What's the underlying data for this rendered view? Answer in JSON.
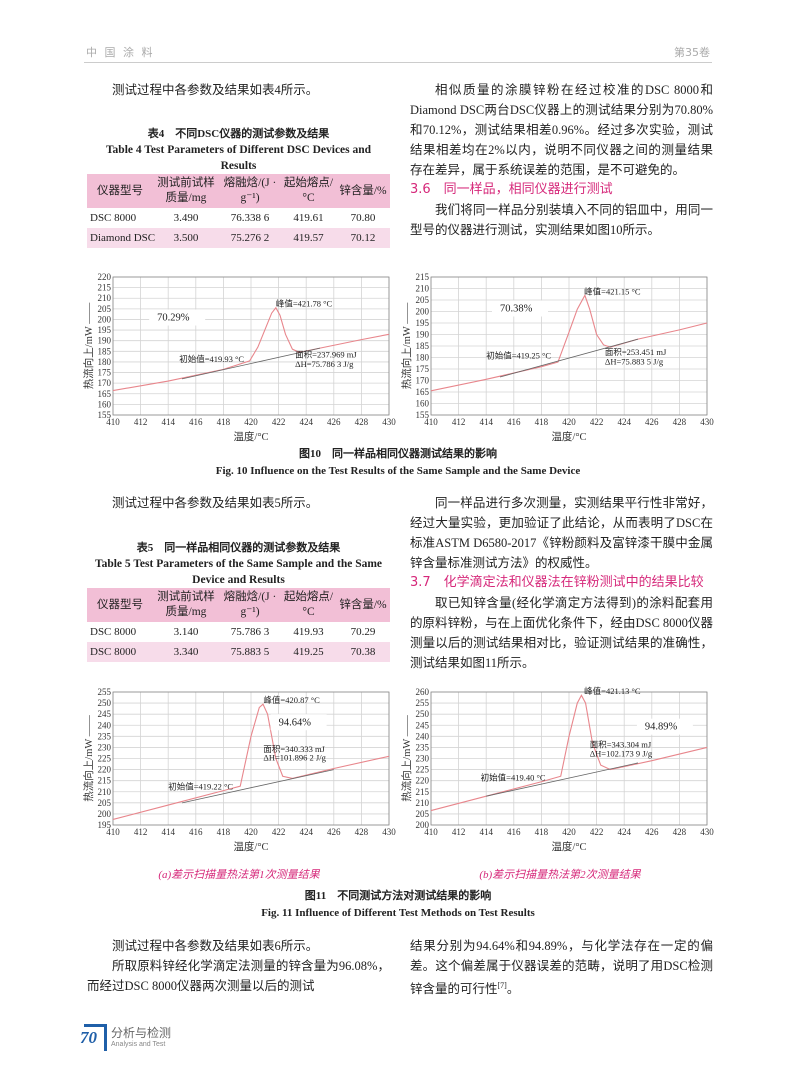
{
  "header": {
    "journal": "中 国 涂 料",
    "volume": "第35卷"
  },
  "left1": {
    "p1": "测试过程中各参数及结果如表4所示。"
  },
  "table4": {
    "title_cn": "表4　不同DSC仪器的测试参数及结果",
    "title_en": "Table 4  Test Parameters of Different DSC Devices and Results",
    "headers": [
      "仪器型号",
      "测试前试样质量/mg",
      "熔融焓/(J · g⁻¹)",
      "起始熔点/°C",
      "锌含量/%"
    ],
    "rows": [
      [
        "DSC 8000",
        "3.490",
        "76.338 6",
        "419.61",
        "70.80"
      ],
      [
        "Diamond DSC",
        "3.500",
        "75.276 2",
        "419.57",
        "70.12"
      ]
    ]
  },
  "right1": {
    "p1": "相似质量的涂膜锌粉在经过校准的DSC 8000和Diamond DSC两台DSC仪器上的测试结果分别为70.80%和70.12%，测试结果相差0.96%。经过多次实验，测试结果相差均在2%以内，说明不同仪器之间的测量结果存在差异，属于系统误差的范围，是不可避免的。",
    "sec": "3.6　同一样品，相同仪器进行测试",
    "p2": "我们将同一样品分别装填入不同的铝皿中，用同一型号的仪器进行测试，实测结果如图10所示。"
  },
  "fig10": {
    "cap_cn": "图10　同一样品相同仪器测试结果的影响",
    "cap_en": "Fig. 10   Influence on the Test Results of the Same Sample and the Same Device"
  },
  "left2": {
    "p1": "测试过程中各参数及结果如表5所示。"
  },
  "table5": {
    "title_cn": "表5　同一样品相同仪器的测试参数及结果",
    "title_en": "Table 5   Test Parameters of the Same Sample and the Same Device and Results",
    "headers": [
      "仪器型号",
      "测试前试样质量/mg",
      "熔融焓/(J · g⁻¹)",
      "起始熔点/°C",
      "锌含量/%"
    ],
    "rows": [
      [
        "DSC 8000",
        "3.140",
        "75.786 3",
        "419.93",
        "70.29"
      ],
      [
        "DSC 8000",
        "3.340",
        "75.883 5",
        "419.25",
        "70.38"
      ]
    ]
  },
  "right2": {
    "p1": "同一样品进行多次测量，实测结果平行性非常好，经过大量实验，更加验证了此结论，从而表明了DSC在标准ASTM D6580-2017《锌粉颜料及富锌漆干膜中金属锌含量标准测试方法》的权威性。",
    "sec": "3.7　化学滴定法和仪器法在锌粉测试中的结果比较",
    "p2": "取已知锌含量(经化学滴定方法得到)的涂料配套用的原料锌粉，与在上面优化条件下，经由DSC 8000仪器测量以后的测试结果相对比，验证测试结果的准确性，测试结果如图11所示。"
  },
  "fig11": {
    "sub_a": "(a)差示扫描量热法第1次测量结果",
    "sub_b": "(b)差示扫描量热法第2次测量结果",
    "cap_cn": "图11　不同测试方法对测试结果的影响",
    "cap_en": "Fig. 11   Influence of Different Test Methods on Test Results"
  },
  "bottom": {
    "l1": "测试过程中各参数及结果如表6所示。",
    "l2": "所取原料锌经化学滴定法测量的锌含量为96.08%，而经过DSC 8000仪器两次测量以后的测试",
    "r1": "结果分别为94.64%和94.89%，与化学法存在一定的偏差。这个偏差属于仪器误差的范畴，说明了用DSC检测锌含量的可行性",
    "r1_ref": "[7]",
    "r1_end": "。"
  },
  "footer": {
    "page": "70",
    "section_cn": "分析与检测",
    "section_en": "Analysis and Test"
  },
  "colors": {
    "accent": "#d6287a",
    "curve": "#e8868c",
    "baseline": "#666666",
    "table_header": "#f2bfd6"
  },
  "chart_data": [
    {
      "type": "line",
      "xlabel": "温度/°C",
      "ylabel": "热流向上/mW",
      "xlim": [
        410,
        430
      ],
      "ylim": [
        155,
        220
      ],
      "ystep": 5,
      "xstep": 2,
      "grid": true,
      "curve": [
        [
          410,
          166.5
        ],
        [
          414,
          171
        ],
        [
          418,
          176.5
        ],
        [
          419.9,
          180.5
        ],
        [
          420.5,
          187
        ],
        [
          421,
          195
        ],
        [
          421.5,
          203
        ],
        [
          421.8,
          205.5
        ],
        [
          422.1,
          202
        ],
        [
          422.5,
          193
        ],
        [
          423,
          186
        ],
        [
          423.5,
          184.5
        ],
        [
          425,
          186.5
        ],
        [
          428,
          190.5
        ],
        [
          430,
          193
        ]
      ],
      "baseline": [
        [
          415,
          172
        ],
        [
          425,
          186.5
        ]
      ],
      "annotations": [
        {
          "text": "峰值=421.78 °C",
          "x": 421.8,
          "y": 206
        },
        {
          "text": "70.29%",
          "x": 413.2,
          "y": 199.5,
          "box": true
        },
        {
          "text": "初始值=419.93 °C",
          "x": 414.8,
          "y": 180
        },
        {
          "text": "面积=237.969 mJ",
          "x": 423.2,
          "y": 182
        },
        {
          "text": "ΔH=75.786 3 J/g",
          "x": 423.2,
          "y": 177.5
        }
      ]
    },
    {
      "type": "line",
      "xlabel": "温度/°C",
      "ylabel": "热流向上/mW",
      "xlim": [
        410,
        430
      ],
      "ylim": [
        155,
        215
      ],
      "ystep": 5,
      "xstep": 2,
      "grid": true,
      "curve": [
        [
          410,
          165.5
        ],
        [
          414,
          170.5
        ],
        [
          418,
          176
        ],
        [
          419.2,
          178
        ],
        [
          420,
          191
        ],
        [
          420.6,
          201
        ],
        [
          421.15,
          207
        ],
        [
          421.5,
          201
        ],
        [
          422,
          190
        ],
        [
          422.5,
          185.5
        ],
        [
          423,
          184.5
        ],
        [
          425,
          188
        ],
        [
          428,
          192
        ],
        [
          430,
          195
        ]
      ],
      "baseline": [
        [
          415,
          171.5
        ],
        [
          425,
          188
        ]
      ],
      "annotations": [
        {
          "text": "峰值=421.15 °C",
          "x": 421.1,
          "y": 207.5
        },
        {
          "text": "70.38%",
          "x": 415,
          "y": 200,
          "box": true
        },
        {
          "text": "初始值=419.25 °C",
          "x": 414,
          "y": 179.5
        },
        {
          "text": "面积=253.451 mJ",
          "x": 422.6,
          "y": 181
        },
        {
          "text": "ΔH=75.883 5 J/g",
          "x": 422.6,
          "y": 177
        }
      ]
    },
    {
      "type": "line",
      "xlabel": "温度/°C",
      "ylabel": "热流向上/mW",
      "xlim": [
        410,
        430
      ],
      "ylim": [
        195,
        255
      ],
      "ystep": 5,
      "xstep": 2,
      "grid": true,
      "curve": [
        [
          410,
          197.5
        ],
        [
          414,
          204
        ],
        [
          418,
          210.5
        ],
        [
          419.22,
          212.5
        ],
        [
          420,
          235
        ],
        [
          420.6,
          248
        ],
        [
          420.87,
          249.5
        ],
        [
          421.2,
          245
        ],
        [
          421.8,
          225
        ],
        [
          422.3,
          217
        ],
        [
          423,
          216
        ],
        [
          426,
          220.5
        ],
        [
          430,
          226
        ]
      ],
      "baseline": [
        [
          415,
          205
        ],
        [
          426,
          220
        ]
      ],
      "annotations": [
        {
          "text": "峰值=420.87 °C",
          "x": 420.9,
          "y": 250
        },
        {
          "text": "94.64%",
          "x": 422,
          "y": 240,
          "box": true
        },
        {
          "text": "初始值=419.22 °C",
          "x": 414,
          "y": 211
        },
        {
          "text": "面积=340.333 mJ",
          "x": 420.9,
          "y": 228
        },
        {
          "text": "ΔH=101.896 2 J/g",
          "x": 420.9,
          "y": 224
        }
      ]
    },
    {
      "type": "line",
      "xlabel": "温度/°C",
      "ylabel": "热流向上/mW",
      "xlim": [
        410,
        430
      ],
      "ylim": [
        200,
        260
      ],
      "ystep": 5,
      "xstep": 2,
      "grid": true,
      "curve": [
        [
          410,
          206.5
        ],
        [
          414,
          213
        ],
        [
          418,
          219.5
        ],
        [
          419.4,
          222
        ],
        [
          420,
          240
        ],
        [
          420.6,
          255
        ],
        [
          420.9,
          258.5
        ],
        [
          421.2,
          255
        ],
        [
          421.7,
          237
        ],
        [
          422.3,
          227
        ],
        [
          423,
          225
        ],
        [
          426,
          229
        ],
        [
          430,
          235
        ]
      ],
      "baseline": [
        [
          414,
          213
        ],
        [
          425,
          228
        ]
      ],
      "annotations": [
        {
          "text": "峰值=421.13 °C",
          "x": 421.1,
          "y": 259
        },
        {
          "text": "94.89%",
          "x": 425.5,
          "y": 243,
          "box": true
        },
        {
          "text": "初始值=419.40 °C",
          "x": 413.6,
          "y": 220
        },
        {
          "text": "面积=343.304 mJ",
          "x": 421.5,
          "y": 235
        },
        {
          "text": "ΔH=102.173 9 J/g",
          "x": 421.5,
          "y": 231
        }
      ]
    }
  ]
}
